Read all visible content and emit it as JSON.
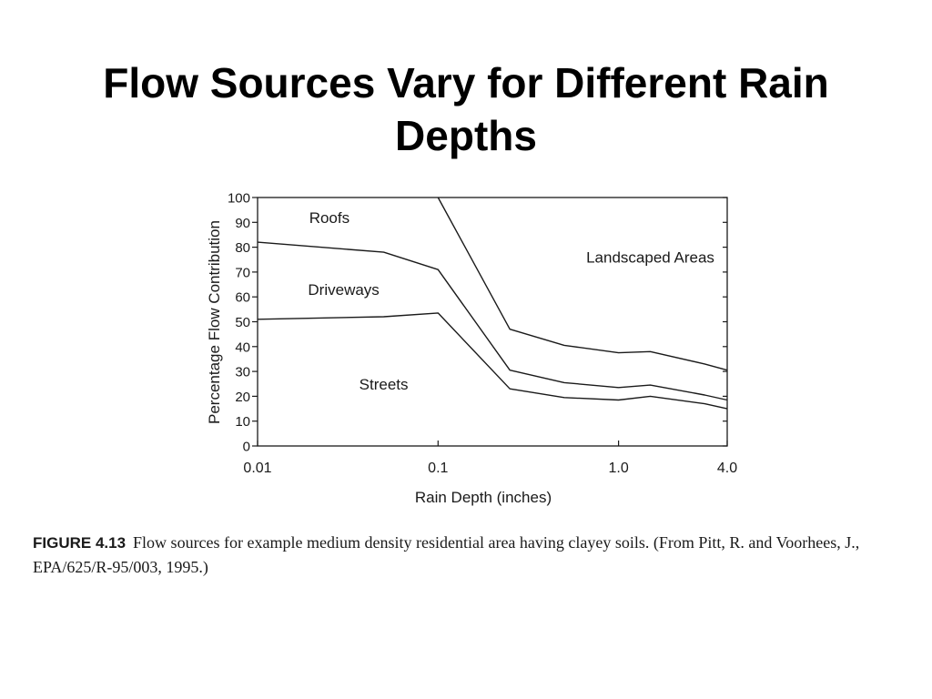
{
  "slide": {
    "title_line1": "Flow Sources Vary for Different Rain",
    "title_line2": "Depths"
  },
  "caption": {
    "figure_label": "FIGURE 4.13",
    "text": "Flow sources for example medium density residential area having clayey soils. (From Pitt, R. and Voorhees, J., EPA/625/R-95/003, 1995.)"
  },
  "colors": {
    "line": "#1a1a1a",
    "background": "#ffffff",
    "text": "#1a1a1a"
  },
  "chart_data": {
    "type": "area",
    "title": "",
    "xlabel": "Rain Depth (inches)",
    "ylabel": "Percentage Flow Contribution",
    "xscale": "log",
    "xlim": [
      0.01,
      4.0
    ],
    "ylim": [
      0,
      100
    ],
    "x_ticks": [
      0.01,
      0.1,
      1.0,
      4.0
    ],
    "x_tick_labels": [
      "0.01",
      "0.1",
      "1.0",
      "4.0"
    ],
    "y_ticks": [
      0,
      10,
      20,
      30,
      40,
      50,
      60,
      70,
      80,
      90,
      100
    ],
    "y_tick_labels": [
      "0",
      "10",
      "20",
      "30",
      "40",
      "50",
      "60",
      "70",
      "80",
      "90",
      "100"
    ],
    "grid": false,
    "legend": "none",
    "boundaries": [
      {
        "name": "streets-driveways",
        "x": [
          0.01,
          0.05,
          0.1,
          0.25,
          0.5,
          1.0,
          1.5,
          3.0,
          4.0
        ],
        "y": [
          51,
          52,
          53.5,
          23,
          19.5,
          18.5,
          20,
          17,
          15
        ]
      },
      {
        "name": "driveways-roofs",
        "x": [
          0.01,
          0.05,
          0.1,
          0.25,
          0.5,
          1.0,
          1.5,
          3.0,
          4.0
        ],
        "y": [
          82,
          78,
          71,
          30.5,
          25.5,
          23.5,
          24.5,
          20.5,
          18.5
        ]
      },
      {
        "name": "roofs-landscaped",
        "x": [
          0.1,
          0.25,
          0.5,
          1.0,
          1.5,
          3.0,
          4.0
        ],
        "y": [
          100,
          47,
          40.5,
          37.5,
          38,
          33,
          30.5
        ]
      }
    ],
    "region_labels": [
      {
        "text": "Roofs",
        "x": 0.025,
        "y": 92
      },
      {
        "text": "Driveways",
        "x": 0.03,
        "y": 63
      },
      {
        "text": "Streets",
        "x": 0.05,
        "y": 25
      },
      {
        "text": "Landscaped Areas",
        "x": 1.5,
        "y": 76
      }
    ]
  }
}
